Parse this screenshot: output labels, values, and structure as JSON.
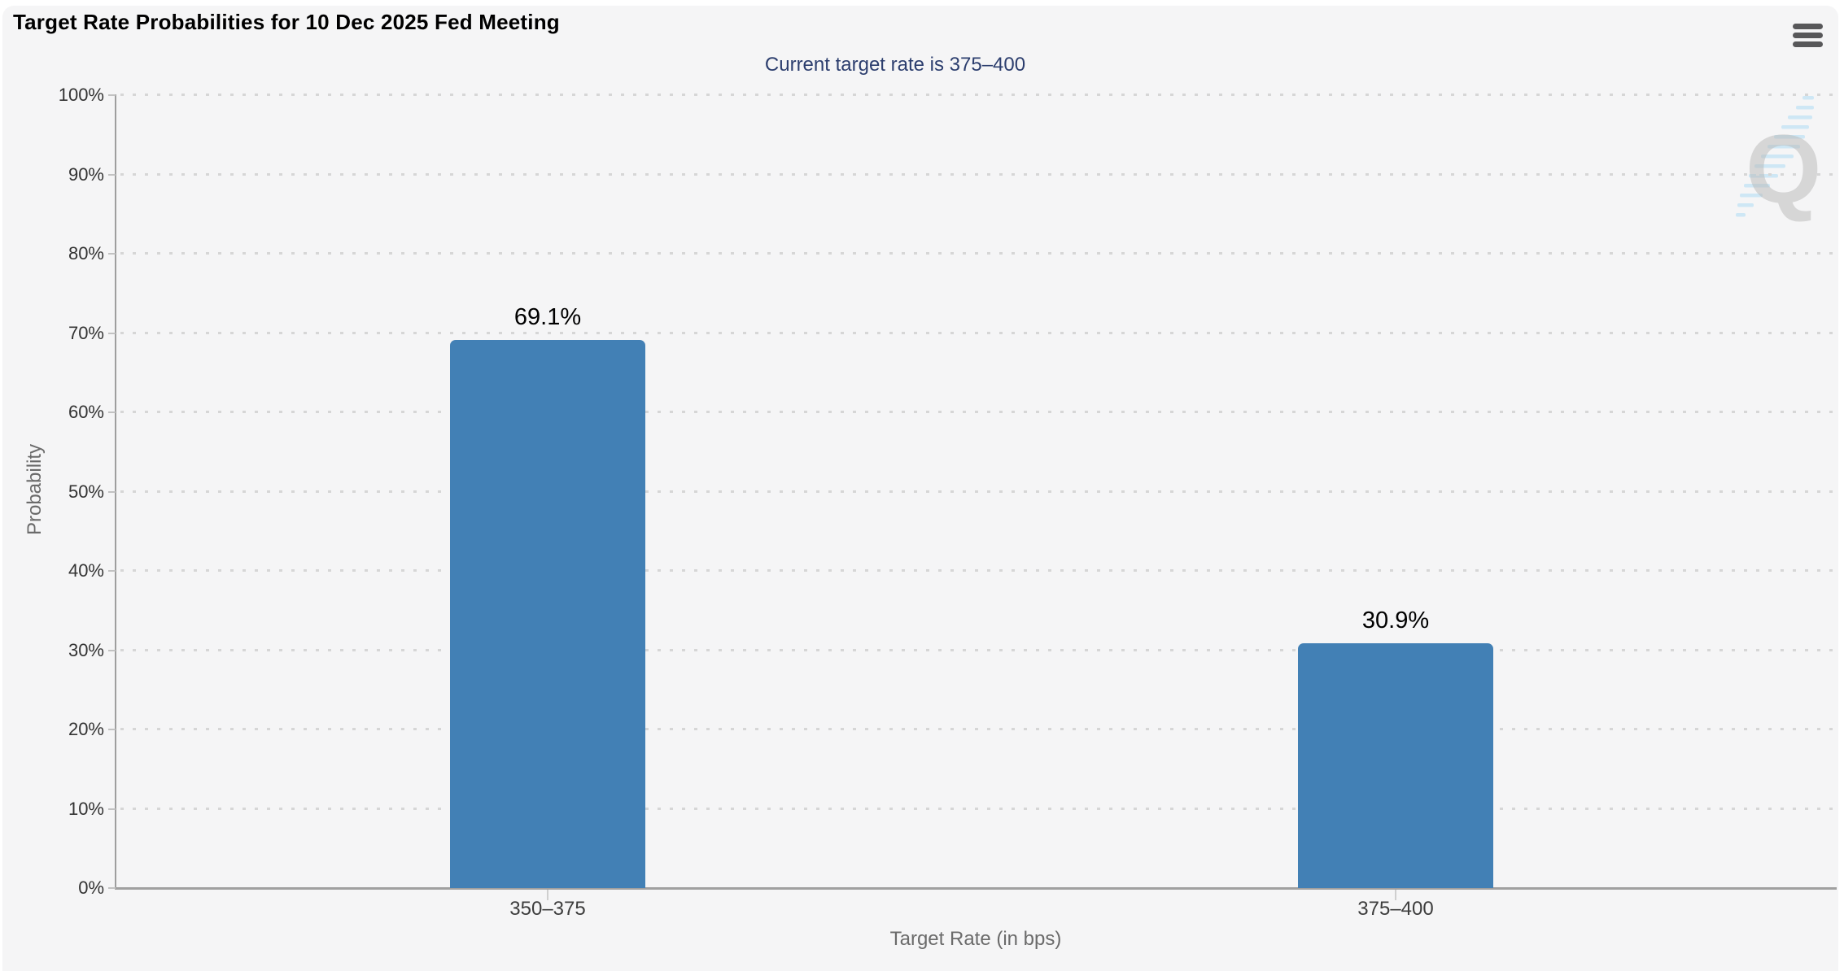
{
  "header": {
    "title": "Target Rate Probabilities for 10 Dec 2025 Fed Meeting",
    "menu_icon": "hamburger-menu-icon"
  },
  "subtitle": "Current target rate is 375–400",
  "watermark": {
    "letter": "Q",
    "icon": "quikstrike-logo-watermark"
  },
  "chart_data": {
    "type": "bar",
    "title": "Target Rate Probabilities for 10 Dec 2025 Fed Meeting",
    "subtitle": "Current target rate is 375–400",
    "categories": [
      "350–375",
      "375–400"
    ],
    "values": [
      69.1,
      30.9
    ],
    "value_labels": [
      "69.1%",
      "30.9%"
    ],
    "xlabel": "Target Rate (in bps)",
    "ylabel": "Probability",
    "ylim": [
      0,
      100
    ],
    "y_tick_values": [
      0,
      10,
      20,
      30,
      40,
      50,
      60,
      70,
      80,
      90,
      100
    ],
    "y_ticks": [
      "0%",
      "10%",
      "20%",
      "30%",
      "40%",
      "50%",
      "60%",
      "70%",
      "80%",
      "90%",
      "100%"
    ],
    "grid": "dotted-horizontal",
    "legend": "none",
    "bar_color": "#4280b5",
    "grid_color": "#d6d6d6",
    "axis_color": "#9e9e9e",
    "subtitle_color": "#2c3e6e",
    "background_color": "#f5f5f6"
  }
}
